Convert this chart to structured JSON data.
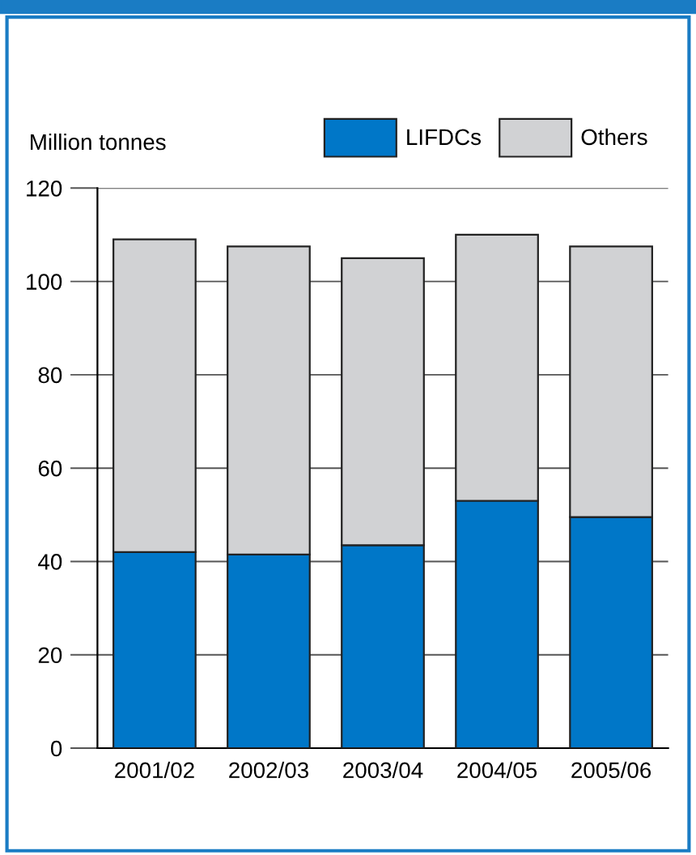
{
  "chart_data": {
    "type": "bar",
    "stacked": true,
    "ylabel": "Million tonnes",
    "categories": [
      "2001/02",
      "2002/03",
      "2003/04",
      "2004/05",
      "2005/06"
    ],
    "series": [
      {
        "name": "LIFDCs",
        "color": "#0077c8",
        "values": [
          42,
          41.5,
          43.5,
          53,
          49.5
        ]
      },
      {
        "name": "Others",
        "color": "#d1d2d4",
        "values": [
          67,
          66,
          61.5,
          57,
          58
        ]
      }
    ],
    "ylim": [
      0,
      120
    ],
    "yticks": [
      0,
      20,
      40,
      60,
      80,
      100,
      120
    ],
    "grid": "y",
    "legend": "top right"
  }
}
